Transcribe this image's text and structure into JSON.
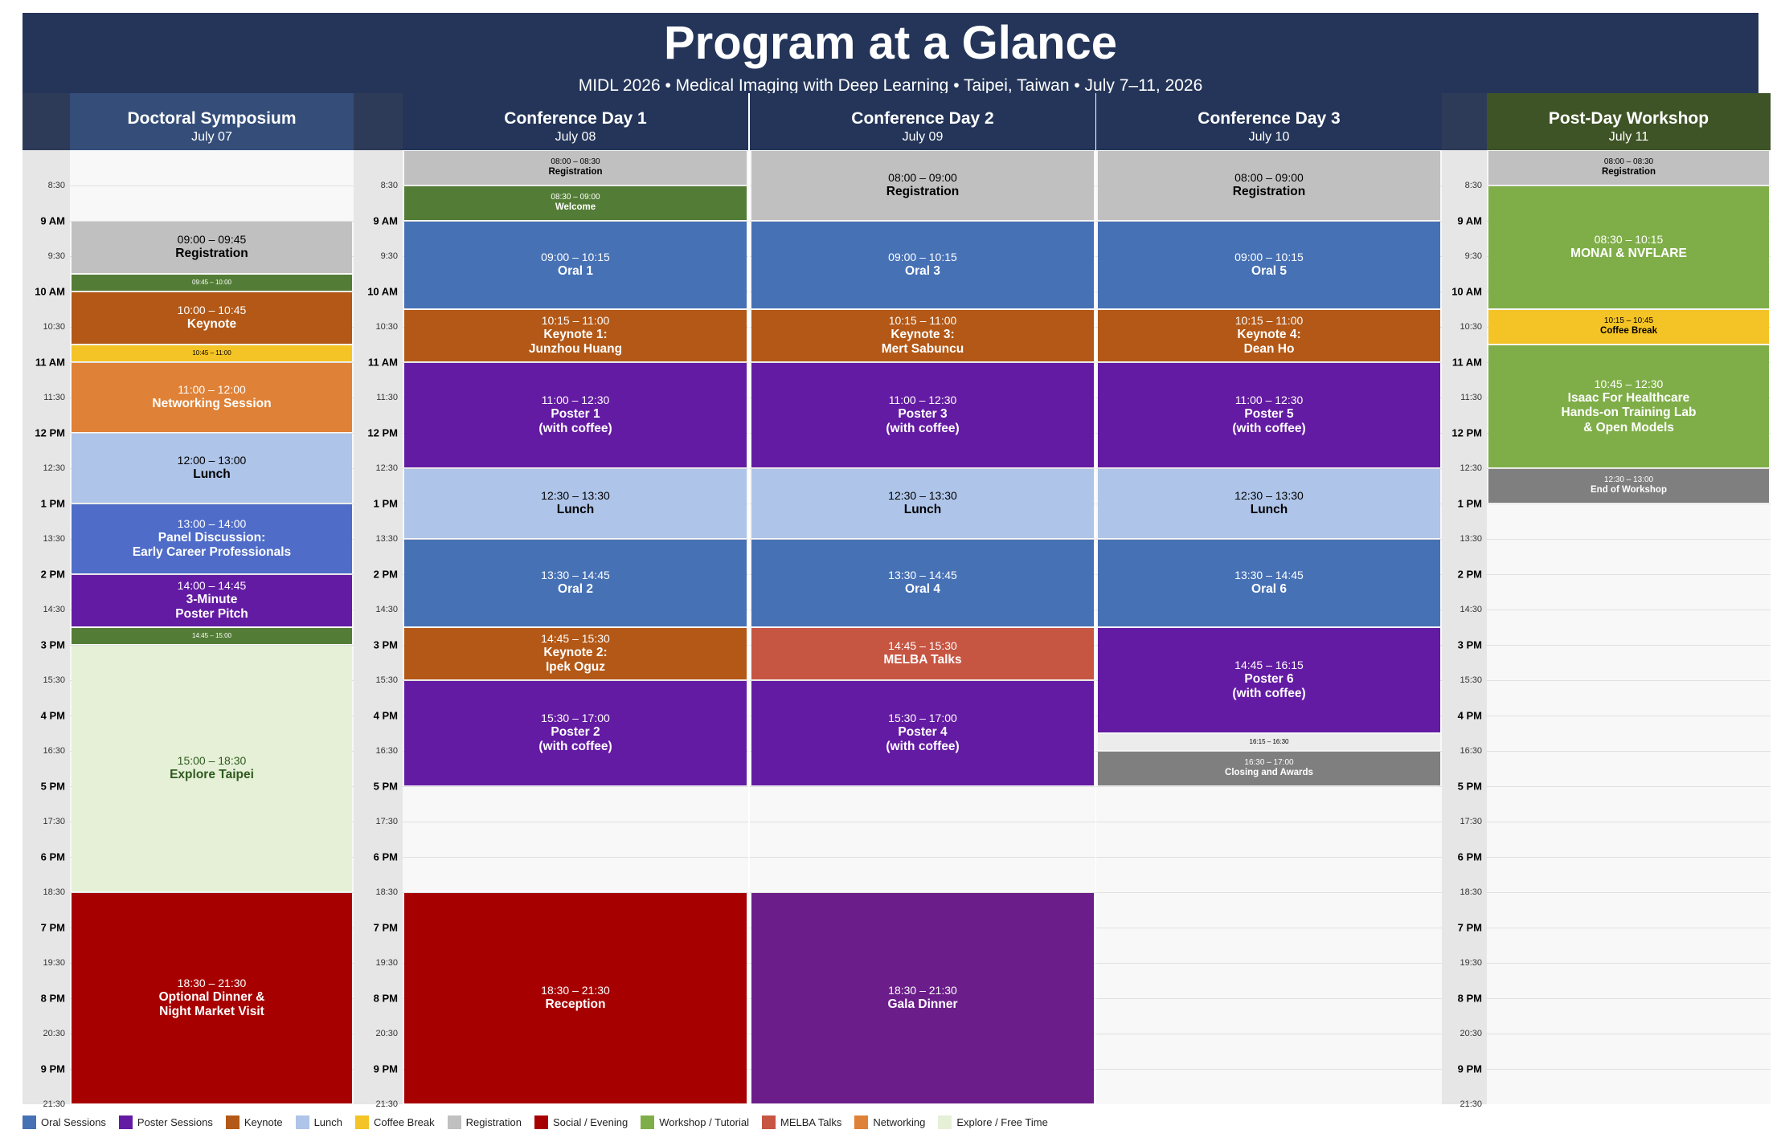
{
  "header": {
    "title": "Program at a Glance",
    "subtitle": "MIDL 2026  •  Medical Imaging with Deep Learning  •  Taipei, Taiwan  •  July 7–11, 2026"
  },
  "time_ticks": [
    "8:30",
    "9 AM",
    "9:30",
    "10 AM",
    "10:30",
    "11 AM",
    "11:30",
    "12 PM",
    "12:30",
    "1 PM",
    "13:30",
    "2 PM",
    "14:30",
    "3 PM",
    "15:30",
    "4 PM",
    "16:30",
    "5 PM",
    "17:30",
    "6 PM",
    "18:30",
    "7 PM",
    "19:30",
    "8 PM",
    "20:30",
    "9 PM",
    "21:30"
  ],
  "columns": [
    {
      "name": "Doctoral Symposium",
      "date": "July 07",
      "header_color": "#344e79",
      "events": [
        {
          "start": "09:00",
          "end": "09:45",
          "time": "09:00 – 09:45",
          "name": "Registration",
          "color": "#c0c0c0",
          "text": "#000000"
        },
        {
          "start": "09:45",
          "end": "10:00",
          "time": "09:45 – 10:00",
          "name": "",
          "color": "#537d36",
          "text": "#ffffff"
        },
        {
          "start": "10:00",
          "end": "10:45",
          "time": "10:00 – 10:45",
          "name": "Keynote",
          "color": "#b35816",
          "text": "#ffffff"
        },
        {
          "start": "10:45",
          "end": "11:00",
          "time": "10:45 – 11:00",
          "name": "",
          "color": "#f4c325",
          "text": "#000000"
        },
        {
          "start": "11:00",
          "end": "12:00",
          "time": "11:00 – 12:00",
          "name": "Networking Session",
          "color": "#df8136",
          "text": "#ffffff"
        },
        {
          "start": "12:00",
          "end": "13:00",
          "time": "12:00 – 13:00",
          "name": "Lunch",
          "color": "#aec4e8",
          "text": "#000000"
        },
        {
          "start": "13:00",
          "end": "14:00",
          "time": "13:00 – 14:00",
          "name": "Panel Discussion:\nEarly Career Professionals",
          "color": "#4f6cc8",
          "text": "#ffffff"
        },
        {
          "start": "14:00",
          "end": "14:45",
          "time": "14:00 – 14:45",
          "name": "3-Minute\nPoster Pitch",
          "color": "#641ba3",
          "text": "#ffffff"
        },
        {
          "start": "14:45",
          "end": "15:00",
          "time": "14:45 – 15:00",
          "name": "",
          "color": "#537d36",
          "text": "#ffffff"
        },
        {
          "start": "15:00",
          "end": "18:30",
          "time": "15:00 – 18:30",
          "name": "Explore Taipei",
          "color": "#e5f0d7",
          "text": "#2f5a1e"
        },
        {
          "start": "18:30",
          "end": "21:30",
          "time": "18:30 – 21:30",
          "name": "Optional Dinner &\nNight Market Visit",
          "color": "#a70000",
          "text": "#ffffff"
        }
      ]
    },
    {
      "name": "Conference Day 1",
      "date": "July 08",
      "header_color": "#243559",
      "events": [
        {
          "start": "08:00",
          "end": "08:30",
          "time": "08:00 – 08:30",
          "name": "Registration",
          "color": "#c0c0c0",
          "text": "#000000"
        },
        {
          "start": "08:30",
          "end": "09:00",
          "time": "08:30 – 09:00",
          "name": "Welcome",
          "color": "#537d36",
          "text": "#ffffff"
        },
        {
          "start": "09:00",
          "end": "10:15",
          "time": "09:00 – 10:15",
          "name": "Oral 1",
          "color": "#4671b5",
          "text": "#ffffff"
        },
        {
          "start": "10:15",
          "end": "11:00",
          "time": "10:15 – 11:00",
          "name": "Keynote 1:\nJunzhou Huang",
          "color": "#b35816",
          "text": "#ffffff"
        },
        {
          "start": "11:00",
          "end": "12:30",
          "time": "11:00 – 12:30",
          "name": "Poster 1\n(with coffee)",
          "color": "#641ba3",
          "text": "#ffffff"
        },
        {
          "start": "12:30",
          "end": "13:30",
          "time": "12:30 – 13:30",
          "name": "Lunch",
          "color": "#aec4e8",
          "text": "#000000"
        },
        {
          "start": "13:30",
          "end": "14:45",
          "time": "13:30 – 14:45",
          "name": "Oral 2",
          "color": "#4671b5",
          "text": "#ffffff"
        },
        {
          "start": "14:45",
          "end": "15:30",
          "time": "14:45 – 15:30",
          "name": "Keynote 2:\nIpek Oguz",
          "color": "#b35816",
          "text": "#ffffff"
        },
        {
          "start": "15:30",
          "end": "17:00",
          "time": "15:30 – 17:00",
          "name": "Poster 2\n(with coffee)",
          "color": "#641ba3",
          "text": "#ffffff"
        },
        {
          "start": "18:30",
          "end": "21:30",
          "time": "18:30 – 21:30",
          "name": "Reception",
          "color": "#a70000",
          "text": "#ffffff"
        }
      ]
    },
    {
      "name": "Conference Day 2",
      "date": "July 09",
      "header_color": "#243559",
      "events": [
        {
          "start": "08:00",
          "end": "09:00",
          "time": "08:00 – 09:00",
          "name": "Registration",
          "color": "#c0c0c0",
          "text": "#000000"
        },
        {
          "start": "09:00",
          "end": "10:15",
          "time": "09:00 – 10:15",
          "name": "Oral 3",
          "color": "#4671b5",
          "text": "#ffffff"
        },
        {
          "start": "10:15",
          "end": "11:00",
          "time": "10:15 – 11:00",
          "name": "Keynote 3:\nMert Sabuncu",
          "color": "#b35816",
          "text": "#ffffff"
        },
        {
          "start": "11:00",
          "end": "12:30",
          "time": "11:00 – 12:30",
          "name": "Poster 3\n(with coffee)",
          "color": "#641ba3",
          "text": "#ffffff"
        },
        {
          "start": "12:30",
          "end": "13:30",
          "time": "12:30 – 13:30",
          "name": "Lunch",
          "color": "#aec4e8",
          "text": "#000000"
        },
        {
          "start": "13:30",
          "end": "14:45",
          "time": "13:30 – 14:45",
          "name": "Oral 4",
          "color": "#4671b5",
          "text": "#ffffff"
        },
        {
          "start": "14:45",
          "end": "15:30",
          "time": "14:45 – 15:30",
          "name": "MELBA Talks",
          "color": "#c65542",
          "text": "#ffffff"
        },
        {
          "start": "15:30",
          "end": "17:00",
          "time": "15:30 – 17:00",
          "name": "Poster 4\n(with coffee)",
          "color": "#641ba3",
          "text": "#ffffff"
        },
        {
          "start": "18:30",
          "end": "21:30",
          "time": "18:30 – 21:30",
          "name": "Gala Dinner",
          "color": "#6b1d8a",
          "text": "#ffffff"
        }
      ]
    },
    {
      "name": "Conference Day 3",
      "date": "July 10",
      "header_color": "#243559",
      "events": [
        {
          "start": "08:00",
          "end": "09:00",
          "time": "08:00 – 09:00",
          "name": "Registration",
          "color": "#c0c0c0",
          "text": "#000000"
        },
        {
          "start": "09:00",
          "end": "10:15",
          "time": "09:00 – 10:15",
          "name": "Oral 5",
          "color": "#4671b5",
          "text": "#ffffff"
        },
        {
          "start": "10:15",
          "end": "11:00",
          "time": "10:15 – 11:00",
          "name": "Keynote 4:\nDean Ho",
          "color": "#b35816",
          "text": "#ffffff"
        },
        {
          "start": "11:00",
          "end": "12:30",
          "time": "11:00 – 12:30",
          "name": "Poster 5\n(with coffee)",
          "color": "#641ba3",
          "text": "#ffffff"
        },
        {
          "start": "12:30",
          "end": "13:30",
          "time": "12:30 – 13:30",
          "name": "Lunch",
          "color": "#aec4e8",
          "text": "#000000"
        },
        {
          "start": "13:30",
          "end": "14:45",
          "time": "13:30 – 14:45",
          "name": "Oral 6",
          "color": "#4671b5",
          "text": "#ffffff"
        },
        {
          "start": "14:45",
          "end": "16:15",
          "time": "14:45 – 16:15",
          "name": "Poster 6\n(with coffee)",
          "color": "#641ba3",
          "text": "#ffffff"
        },
        {
          "start": "16:15",
          "end": "16:30",
          "time": "16:15 – 16:30",
          "name": "",
          "color": "#ececec",
          "text": "#000000"
        },
        {
          "start": "16:30",
          "end": "17:00",
          "time": "16:30 – 17:00",
          "name": "Closing and Awards",
          "color": "#7f7f7f",
          "text": "#ffffff"
        }
      ]
    },
    {
      "name": "Post-Day Workshop",
      "date": "July 11",
      "header_color": "#3f5426",
      "events": [
        {
          "start": "08:00",
          "end": "08:30",
          "time": "08:00 – 08:30",
          "name": "Registration",
          "color": "#c0c0c0",
          "text": "#000000"
        },
        {
          "start": "08:30",
          "end": "10:15",
          "time": "08:30 – 10:15",
          "name": "MONAI & NVFLARE",
          "color": "#7fae48",
          "text": "#ffffff"
        },
        {
          "start": "10:15",
          "end": "10:45",
          "time": "10:15 – 10:45",
          "name": "Coffee Break",
          "color": "#f4c325",
          "text": "#000000"
        },
        {
          "start": "10:45",
          "end": "12:30",
          "time": "10:45 – 12:30",
          "name": "Isaac For Healthcare\nHands-on Training Lab\n& Open Models",
          "color": "#7fae48",
          "text": "#ffffff"
        },
        {
          "start": "12:30",
          "end": "13:00",
          "time": "12:30 – 13:00",
          "name": "End of Workshop",
          "color": "#7f7f7f",
          "text": "#ffffff"
        }
      ]
    }
  ],
  "legend": [
    {
      "label": "Oral Sessions",
      "color": "#4671b5"
    },
    {
      "label": "Poster Sessions",
      "color": "#641ba3"
    },
    {
      "label": "Keynote",
      "color": "#b35816"
    },
    {
      "label": "Lunch",
      "color": "#aec4e8"
    },
    {
      "label": "Coffee Break",
      "color": "#f4c325"
    },
    {
      "label": "Registration",
      "color": "#c0c0c0"
    },
    {
      "label": "Social / Evening",
      "color": "#a70000"
    },
    {
      "label": "Workshop / Tutorial",
      "color": "#7fae48"
    },
    {
      "label": "MELBA Talks",
      "color": "#c65542"
    },
    {
      "label": "Networking",
      "color": "#df8136"
    },
    {
      "label": "Explore / Free Time",
      "color": "#e5f0d7"
    }
  ]
}
